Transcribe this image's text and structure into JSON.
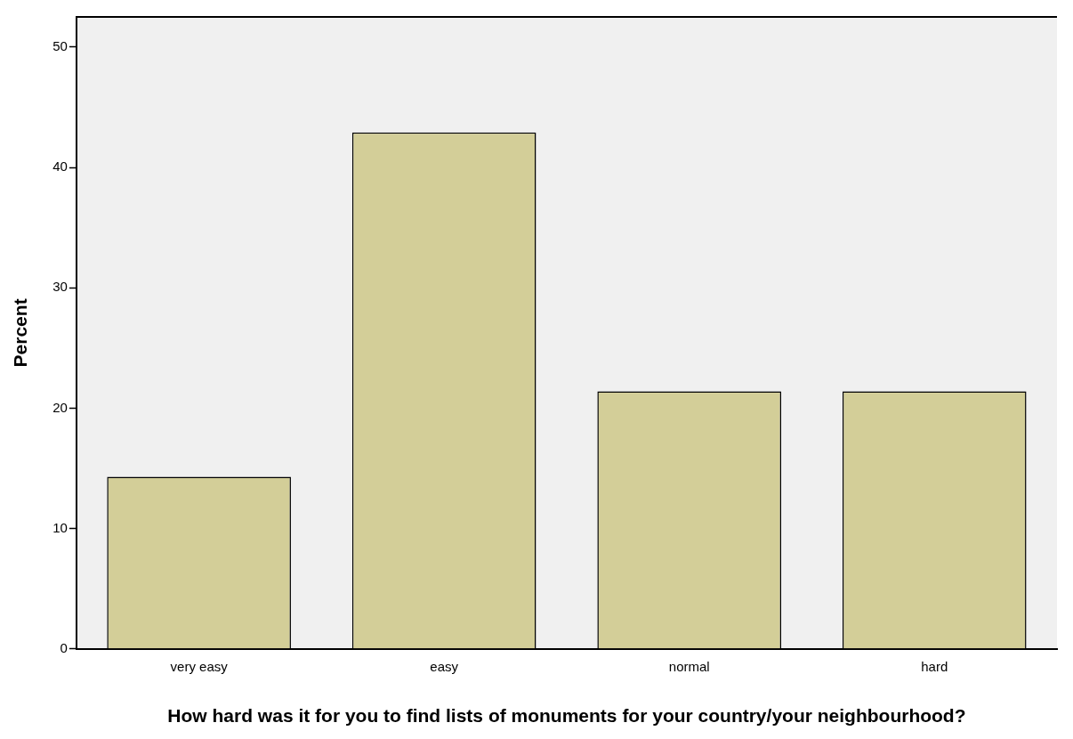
{
  "chart_data": {
    "type": "bar",
    "xlabel": "How hard was it for you to find lists of monuments for your country/your neighbourhood?",
    "ylabel": "Percent",
    "categories": [
      "very easy",
      "easy",
      "normal",
      "hard"
    ],
    "values": [
      14.3,
      42.9,
      21.4,
      21.4
    ],
    "color": "#d3ce98",
    "ylim": [
      0,
      52.5
    ],
    "yticks": [
      0,
      10,
      20,
      30,
      40,
      50
    ],
    "grid": false,
    "legend": false
  }
}
